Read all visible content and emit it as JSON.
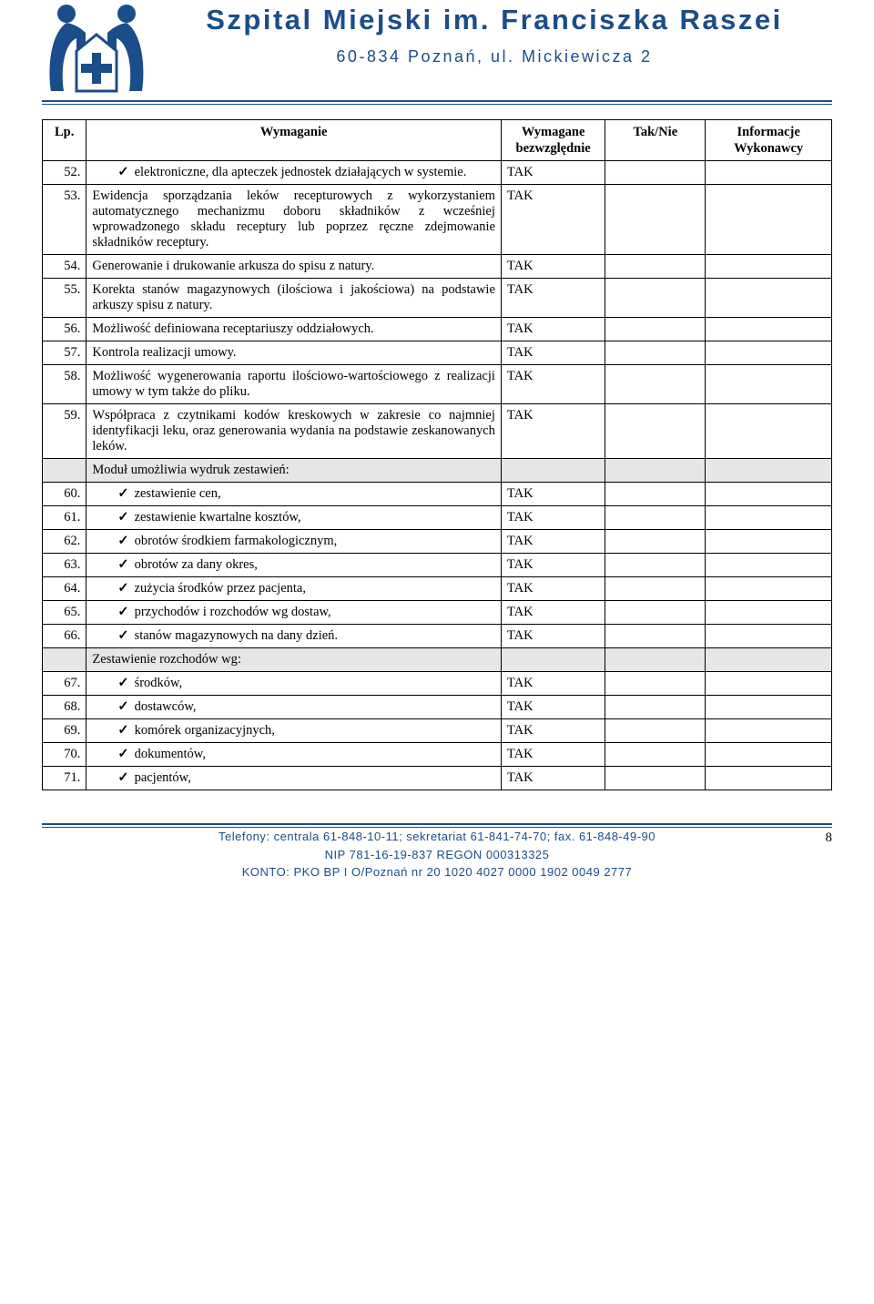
{
  "header": {
    "title": "Szpital Miejski im. Franciszka Raszei",
    "subtitle": "60-834 Poznań, ul. Mickiewicza 2",
    "logo_colors": {
      "outline": "#1a4d8a",
      "cross": "#1a4d8a"
    }
  },
  "table": {
    "headers": {
      "lp": "Lp.",
      "req": "Wymaganie",
      "bez": "Wymagane bezwzględnie",
      "tak": "Tak/Nie",
      "inf": "Informacje Wykonawcy"
    },
    "rows": [
      {
        "n": "52.",
        "type": "check",
        "text": "elektroniczne, dla apteczek jednostek działających w systemie.",
        "val": "TAK"
      },
      {
        "n": "53.",
        "type": "plain",
        "text": "Ewidencja sporządzania leków recepturowych z wykorzystaniem automatycznego mechanizmu doboru składników z wcześniej wprowadzonego składu receptury lub poprzez ręczne zdejmowanie składników receptury.",
        "val": "TAK"
      },
      {
        "n": "54.",
        "type": "plain",
        "text": "Generowanie i drukowanie arkusza do spisu z natury.",
        "val": "TAK"
      },
      {
        "n": "55.",
        "type": "plain",
        "text": "Korekta stanów magazynowych (ilościowa i jakościowa) na podstawie arkuszy spisu z natury.",
        "val": "TAK"
      },
      {
        "n": "56.",
        "type": "plain",
        "text": "Możliwość definiowana receptariuszy oddziałowych.",
        "val": "TAK"
      },
      {
        "n": "57.",
        "type": "plain",
        "text": "Kontrola realizacji umowy.",
        "val": "TAK"
      },
      {
        "n": "58.",
        "type": "plain",
        "text": "Możliwość wygenerowania raportu ilościowo-wartościowego  z realizacji umowy w tym także do pliku.",
        "val": "TAK"
      },
      {
        "n": "59.",
        "type": "plain",
        "text": "Współpraca z czytnikami kodów kreskowych w zakresie co najmniej identyfikacji leku, oraz generowania wydania na podstawie zeskanowanych leków.",
        "val": "TAK"
      },
      {
        "n": "",
        "type": "section",
        "text": "Moduł umożliwia wydruk zestawień:",
        "val": ""
      },
      {
        "n": "60.",
        "type": "check",
        "text": "zestawienie cen,",
        "val": "TAK"
      },
      {
        "n": "61.",
        "type": "check",
        "text": "zestawienie kwartalne kosztów,",
        "val": "TAK"
      },
      {
        "n": "62.",
        "type": "check",
        "text": "obrotów środkiem farmakologicznym,",
        "val": "TAK"
      },
      {
        "n": "63.",
        "type": "check",
        "text": "obrotów za dany okres,",
        "val": "TAK"
      },
      {
        "n": "64.",
        "type": "check",
        "text": "zużycia środków przez pacjenta,",
        "val": "TAK"
      },
      {
        "n": "65.",
        "type": "check",
        "text": "przychodów i rozchodów wg dostaw,",
        "val": "TAK"
      },
      {
        "n": "66.",
        "type": "check",
        "text": "stanów magazynowych na dany dzień.",
        "val": "TAK"
      },
      {
        "n": "",
        "type": "section",
        "text": "Zestawienie rozchodów wg:",
        "val": ""
      },
      {
        "n": "67.",
        "type": "check",
        "text": "środków,",
        "val": "TAK"
      },
      {
        "n": "68.",
        "type": "check",
        "text": "dostawców,",
        "val": "TAK"
      },
      {
        "n": "69.",
        "type": "check",
        "text": "komórek organizacyjnych,",
        "val": "TAK"
      },
      {
        "n": "70.",
        "type": "check",
        "text": "dokumentów,",
        "val": "TAK"
      },
      {
        "n": "71.",
        "type": "check",
        "text": "pacjentów,",
        "val": "TAK"
      }
    ]
  },
  "footer": {
    "line1": "Telefony: centrala   61-848-10-11;    sekretariat   61-841-74-70;    fax.   61-848-49-90",
    "line2": "NIP   781-16-19-837        REGON 000313325",
    "line3": "KONTO: PKO BP I O/Poznań nr 20 1020 4027 0000 1902 0049 2777",
    "page": "8"
  },
  "colors": {
    "brand": "#1a4d8a",
    "gray_row": "#e6e6e6",
    "text": "#000000",
    "background": "#ffffff"
  }
}
